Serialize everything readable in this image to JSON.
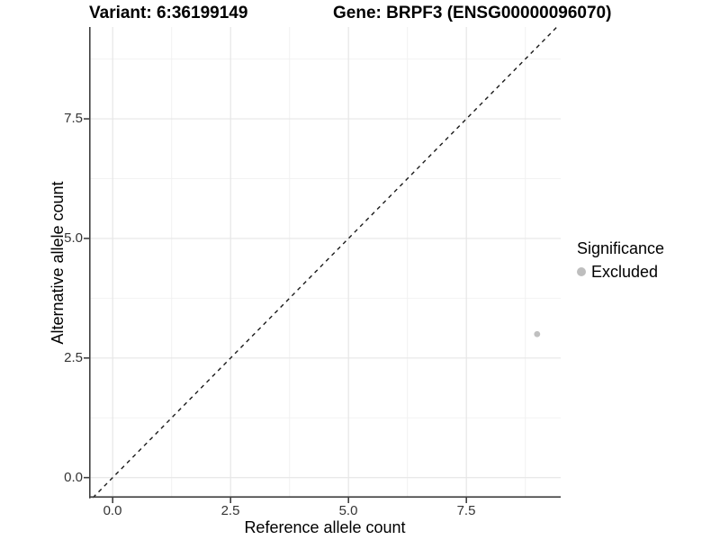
{
  "header": {
    "variant_title": "Variant: 6:36199149",
    "gene_title": "Gene: BRPF3 (ENSG00000096070)"
  },
  "axes": {
    "x": {
      "label": "Reference allele count",
      "tick_labels": [
        "0.0",
        "2.5",
        "5.0",
        "7.5"
      ]
    },
    "y": {
      "label": "Alternative allele count",
      "tick_labels": [
        "0.0",
        "2.5",
        "5.0",
        "7.5"
      ]
    }
  },
  "legend": {
    "title": "Significance",
    "items": [
      {
        "label": "Excluded",
        "color": "#bebebe"
      }
    ]
  },
  "colors": {
    "axis_line": "#404040",
    "tick_mark": "#404040",
    "grid_major": "#e6e6e6",
    "grid_minor": "#f2f2f2",
    "point": "#c0c0c0",
    "reference_line": "#1a1a1a",
    "background": "#ffffff"
  },
  "chart_data": {
    "type": "scatter",
    "title": "Variant: 6:36199149   Gene: BRPF3 (ENSG00000096070)",
    "xlabel": "Reference allele count",
    "ylabel": "Alternative allele count",
    "xlim": [
      -0.5,
      9.5
    ],
    "ylim": [
      -0.42,
      9.42
    ],
    "x_ticks": [
      0.0,
      2.5,
      5.0,
      7.5
    ],
    "y_ticks": [
      0.0,
      2.5,
      5.0,
      7.5
    ],
    "x_minor_ticks": [
      1.25,
      3.75,
      6.25,
      8.75
    ],
    "y_minor_ticks": [
      1.25,
      3.75,
      6.25,
      8.75
    ],
    "grid": "major+minor",
    "legend_position": "right",
    "series": [
      {
        "name": "Excluded",
        "color": "#c0c0c0",
        "points": [
          {
            "x": 9,
            "y": 3
          }
        ]
      }
    ],
    "reference_line": {
      "slope": 1,
      "intercept": 0,
      "linetype": "dashed",
      "color": "#1a1a1a"
    }
  }
}
